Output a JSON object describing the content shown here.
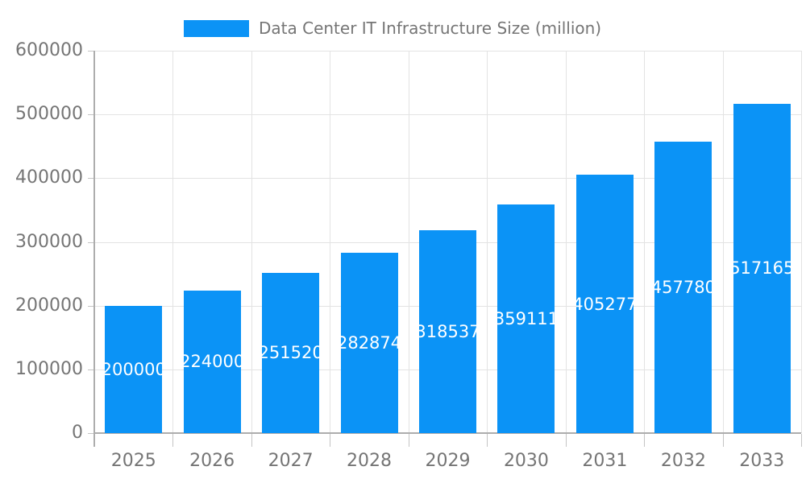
{
  "chart_data": {
    "type": "bar",
    "title": "Data Center IT Infrastructure Size (million)",
    "legend": [
      "Data Center IT Infrastructure Size (million)"
    ],
    "legend_position": "top",
    "categories": [
      "2025",
      "2026",
      "2027",
      "2028",
      "2029",
      "2030",
      "2031",
      "2032",
      "2033"
    ],
    "values": [
      200000,
      224000,
      251520,
      282874,
      318537,
      359111,
      405277,
      457780,
      517165
    ],
    "value_labels": [
      "200000",
      "224000",
      "251520",
      "282874",
      "318537",
      "359111",
      "405277",
      "457780",
      "517165"
    ],
    "xlabel": "",
    "ylabel": "",
    "ylim": [
      0,
      600000
    ],
    "yticks": [
      0,
      100000,
      200000,
      300000,
      400000,
      500000,
      600000
    ],
    "grid": true,
    "colors": {
      "bar": "#0b93f6",
      "value_label": "#ffffff",
      "axis_text": "#757575",
      "gridline": "#e3e3e3",
      "axis_line": "#adadad",
      "tick": "#c4c4c4",
      "background": "#ffffff"
    }
  }
}
